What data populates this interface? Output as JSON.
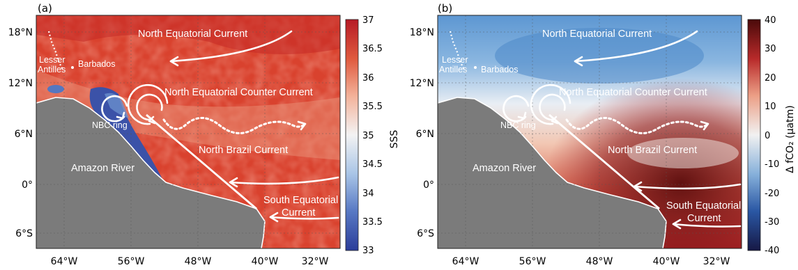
{
  "panels": [
    {
      "letter": "(a)",
      "colorbar_label": "SSS",
      "colorbar_ticks": [
        "37",
        "36.5",
        "36",
        "35.5",
        "35",
        "34.5",
        "34",
        "33.5",
        "33"
      ],
      "colorbar_range": [
        33,
        37
      ],
      "colorbar_stops": [
        "#2b3d9a",
        "#5879c4",
        "#a8c4e6",
        "#f3f3f3",
        "#f3b199",
        "#e05a3e",
        "#b61a25"
      ],
      "labels": {
        "nec": "North Equatorial Current",
        "necc": "North Equatorial Counter Current",
        "nbc": "North Brazil Current",
        "sec1": "South Equatorial",
        "sec2": "Current",
        "amazon": "Amazon River",
        "antilles1": "Lesser",
        "antilles2": "Antilles",
        "barbados": "Barbados",
        "ring": "NBC ring"
      }
    },
    {
      "letter": "(b)",
      "colorbar_label": "Δ fCO₂ (μatm)",
      "colorbar_ticks": [
        "40",
        "30",
        "20",
        "10",
        "0",
        "-10",
        "-20",
        "-30",
        "-40"
      ],
      "colorbar_range": [
        -40,
        40
      ],
      "colorbar_stops": [
        "#161845",
        "#2a57a4",
        "#86b0da",
        "#f1f1f1",
        "#ec9f86",
        "#b82a2a",
        "#4a0a0a"
      ],
      "labels": {
        "nec": "North Equatorial Current",
        "necc": "North Equatorial Counter Current",
        "nbc": "North Brazil Current",
        "sec1": "South Equatorial",
        "sec2": "Current",
        "amazon": "Amazon River",
        "antilles1": "Lesser",
        "antilles2": "Antilles",
        "barbados": "Barbados",
        "ring": "NBC ring"
      }
    }
  ],
  "axes": {
    "lat_labels": [
      "18°N",
      "12°N",
      "6°N",
      "0°",
      "6°S"
    ],
    "lon_labels": [
      "64°W",
      "56°W",
      "48°W",
      "40°W",
      "32°W"
    ]
  },
  "colors": {
    "land": "#7b7b7b",
    "arrows": "#ffffff"
  }
}
